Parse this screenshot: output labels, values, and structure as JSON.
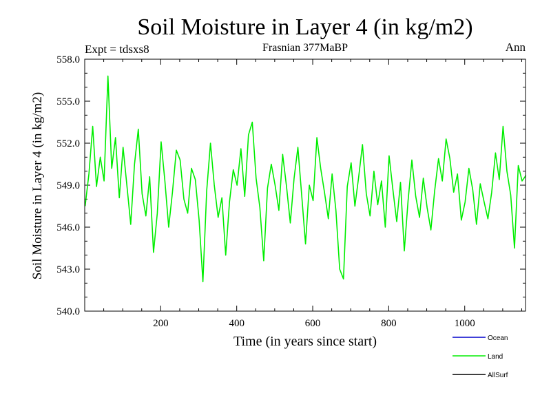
{
  "chart_data": {
    "type": "line",
    "title": "Soil Moisture in Layer 4 (in kg/m2)",
    "subtitle_left": "Expt = tdsxs8",
    "subtitle_center": "Frasnian 377MaBP",
    "subtitle_right": "Ann",
    "xlabel": "Time (in years since start)",
    "ylabel": "Soil Moisture in Layer 4 (in kg/m2)",
    "xlim": [
      0,
      1160
    ],
    "ylim": [
      540.0,
      558.0
    ],
    "x_ticks": [
      200,
      400,
      600,
      800,
      1000
    ],
    "x_tick_labels": [
      "200",
      "400",
      "600",
      "800",
      "1000"
    ],
    "y_ticks": [
      540,
      543,
      546,
      549,
      552,
      555,
      558
    ],
    "y_tick_labels": [
      "540.0",
      "543.0",
      "546.0",
      "549.0",
      "552.0",
      "555.0",
      "558.0"
    ],
    "legend": [
      {
        "name": "Ocean",
        "color": "#0000cc"
      },
      {
        "name": "Land",
        "color": "#00ee00"
      },
      {
        "name": "AllSurf",
        "color": "#000000"
      }
    ],
    "series": [
      {
        "name": "Land",
        "color": "#00ee00",
        "x_start": 1,
        "x_step": 10,
        "values": [
          547.5,
          549.8,
          553.2,
          548.9,
          551.0,
          549.3,
          556.8,
          550.2,
          552.4,
          548.1,
          551.7,
          549.0,
          546.2,
          550.5,
          553.0,
          548.4,
          546.8,
          549.6,
          544.2,
          547.0,
          552.1,
          549.3,
          546.0,
          548.5,
          551.5,
          550.8,
          548.0,
          547.0,
          550.2,
          549.4,
          546.5,
          542.1,
          548.6,
          552.0,
          549.0,
          546.7,
          548.1,
          544.0,
          547.8,
          550.1,
          549.0,
          551.6,
          548.2,
          552.6,
          553.5,
          549.5,
          547.4,
          543.6,
          548.8,
          550.5,
          549.0,
          547.2,
          551.2,
          548.9,
          546.3,
          549.5,
          551.7,
          548.3,
          544.8,
          549.0,
          547.9,
          552.4,
          550.2,
          548.5,
          546.6,
          549.8,
          547.2,
          543.0,
          542.3,
          548.9,
          550.6,
          547.5,
          549.6,
          551.9,
          548.4,
          546.8,
          550.0,
          547.6,
          549.3,
          546.0,
          551.1,
          548.7,
          546.4,
          549.2,
          544.3,
          547.9,
          550.8,
          548.2,
          546.7,
          549.5,
          547.4,
          545.8,
          548.6,
          550.9,
          549.3,
          552.3,
          550.9,
          548.5,
          549.8,
          546.5,
          547.8,
          550.2,
          548.7,
          546.2,
          549.1,
          547.8,
          546.6,
          548.5,
          551.3,
          549.4,
          553.2,
          550.0,
          548.3,
          544.5,
          550.4,
          549.3,
          549.7
        ]
      }
    ]
  }
}
